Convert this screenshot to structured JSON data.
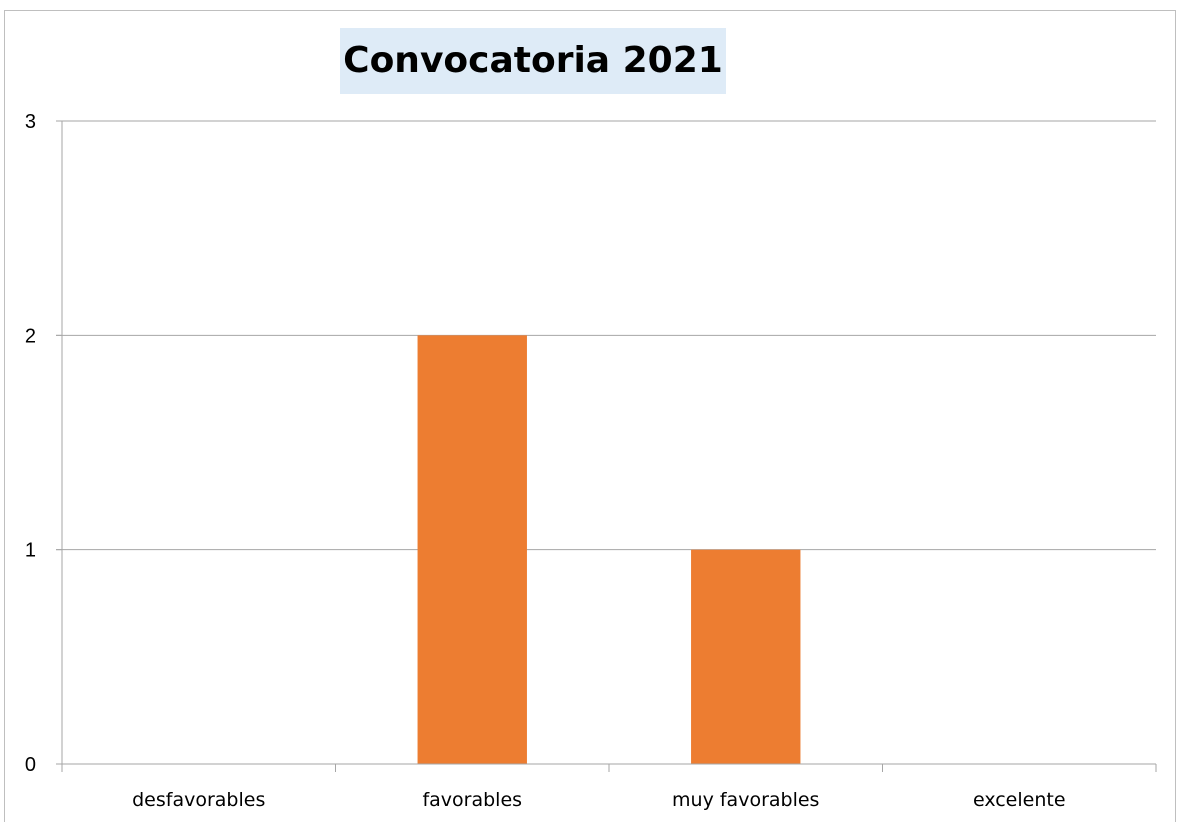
{
  "chart_data": {
    "type": "bar",
    "title": "Convocatoria 2021",
    "categories": [
      "desfavorables",
      "favorables",
      "muy favorables",
      "excelente"
    ],
    "values": [
      0,
      2,
      1,
      0
    ],
    "xlabel": "",
    "ylabel": "",
    "ylim": [
      0,
      3
    ],
    "yticks": [
      "0",
      "1",
      "2",
      "3"
    ],
    "grid": true,
    "legend": "none",
    "bar_color": "#ed7d31",
    "grid_color": "#a6a6a6",
    "title_background": "#deebf7"
  }
}
